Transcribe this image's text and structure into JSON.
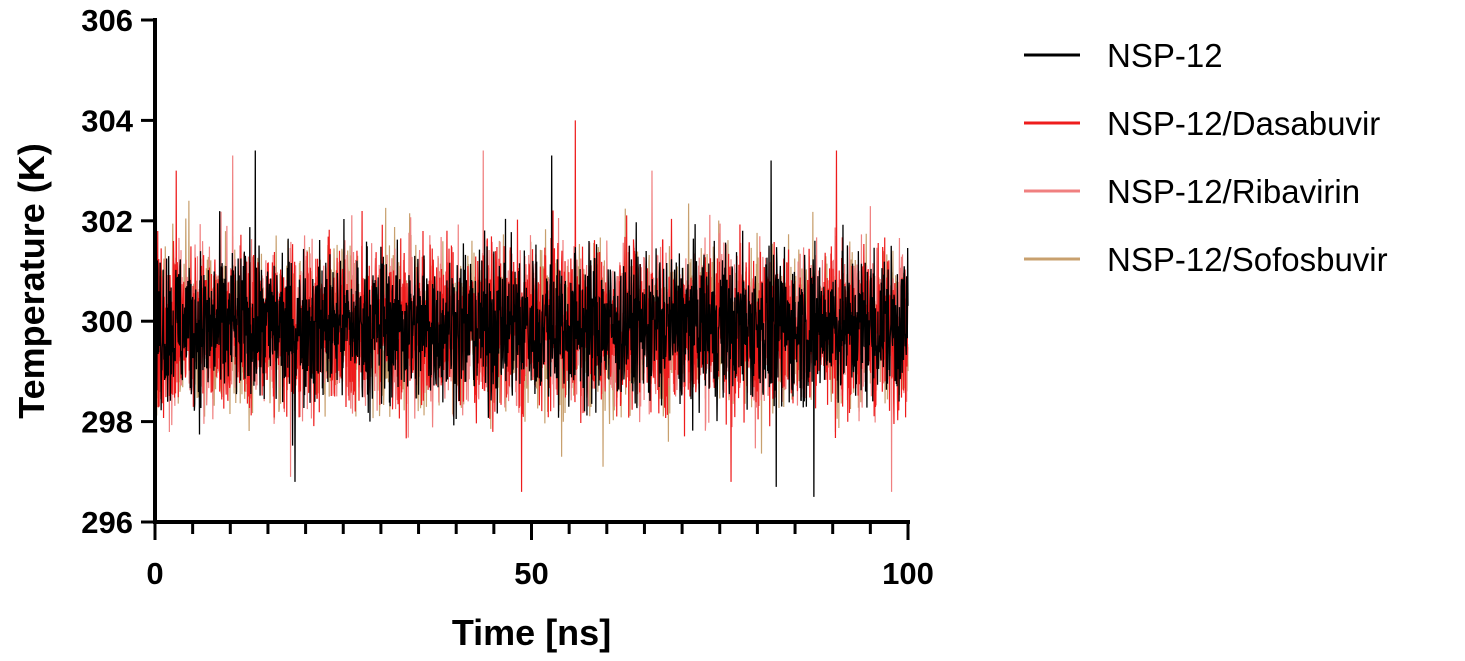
{
  "chart_data": {
    "type": "line",
    "title": "",
    "xlabel": "Time [ns]",
    "ylabel": "Temperature (K)",
    "xlim": [
      0,
      100
    ],
    "ylim": [
      296,
      306
    ],
    "x_major_ticks": [
      0,
      50,
      100
    ],
    "x_tick_labels": [
      "0",
      "50",
      "100"
    ],
    "x_minor_step": 5,
    "y_major_ticks": [
      296,
      298,
      300,
      302,
      304,
      306
    ],
    "y_tick_labels": [
      "296",
      "298",
      "300",
      "302",
      "304",
      "306"
    ],
    "grid": false,
    "legend_position": "right",
    "x_range": [
      0,
      100
    ],
    "series": [
      {
        "name": "NSP-12/Sofosbuvir",
        "color": "#C8A06E",
        "mean": 299.9,
        "spread": 0.8,
        "peaks": [
          {
            "x": 4.5,
            "y": 302.4
          },
          {
            "x": 59.5,
            "y": 297.1
          },
          {
            "x": 54.0,
            "y": 297.3
          }
        ]
      },
      {
        "name": "NSP-12/Ribavirin",
        "color": "#F08080",
        "mean": 299.9,
        "spread": 0.8,
        "peaks": [
          {
            "x": 10.3,
            "y": 303.3
          },
          {
            "x": 43.6,
            "y": 303.4
          },
          {
            "x": 18.0,
            "y": 296.9
          },
          {
            "x": 97.8,
            "y": 296.6
          },
          {
            "x": 66.0,
            "y": 303.0
          }
        ]
      },
      {
        "name": "NSP-12/Dasabuvir",
        "color": "#EE1C1C",
        "mean": 299.9,
        "spread": 0.8,
        "peaks": [
          {
            "x": 55.8,
            "y": 304.0
          },
          {
            "x": 90.5,
            "y": 303.4
          },
          {
            "x": 48.7,
            "y": 296.6
          },
          {
            "x": 2.8,
            "y": 303.0
          },
          {
            "x": 76.5,
            "y": 296.8
          }
        ]
      },
      {
        "name": "NSP-12",
        "color": "#000000",
        "mean": 299.9,
        "spread": 0.75,
        "peaks": [
          {
            "x": 13.3,
            "y": 303.4
          },
          {
            "x": 52.7,
            "y": 303.3
          },
          {
            "x": 81.8,
            "y": 303.2
          },
          {
            "x": 87.5,
            "y": 296.5
          },
          {
            "x": 82.5,
            "y": 296.7
          },
          {
            "x": 18.6,
            "y": 296.8
          }
        ]
      }
    ],
    "legend": [
      {
        "name": "NSP-12",
        "color": "#000000"
      },
      {
        "name": "NSP-12/Dasabuvir",
        "color": "#EE1C1C"
      },
      {
        "name": "NSP-12/Ribavirin",
        "color": "#F08080"
      },
      {
        "name": "NSP-12/Sofosbuvir",
        "color": "#C8A06E"
      }
    ]
  }
}
